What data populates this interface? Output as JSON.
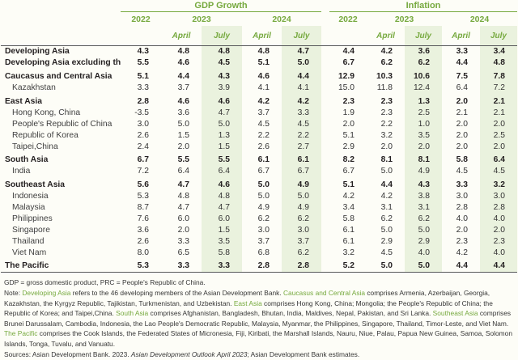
{
  "colors": {
    "accent_green": "#76a93e",
    "july_column_shade": "#eaf2de",
    "rule_dark": "#58595b",
    "text_dark": "#231f20"
  },
  "table": {
    "groups": [
      {
        "label": "GDP Growth",
        "years": [
          {
            "label": "2022"
          },
          {
            "label": "2023"
          },
          {
            "label": "2024"
          }
        ],
        "months": [
          "April",
          "July",
          "April",
          "July"
        ]
      },
      {
        "label": "Inflation",
        "years": [
          {
            "label": "2022"
          },
          {
            "label": "2023"
          },
          {
            "label": "2024"
          }
        ],
        "months": [
          "April",
          "July",
          "April",
          "July"
        ]
      }
    ],
    "rows": [
      {
        "label": "Developing Asia",
        "type": "section",
        "gap_before": false,
        "gdp": [
          "4.3",
          "4.8",
          "4.8",
          "4.8",
          "4.7"
        ],
        "inflation": [
          "4.4",
          "4.2",
          "3.6",
          "3.3",
          "3.4"
        ]
      },
      {
        "label": "Developing Asia excluding the PRC",
        "type": "section",
        "gap_before": false,
        "gdp": [
          "5.5",
          "4.6",
          "4.5",
          "5.1",
          "5.0"
        ],
        "inflation": [
          "6.7",
          "6.2",
          "6.2",
          "4.4",
          "4.8"
        ]
      },
      {
        "label": "Caucasus and Central Asia",
        "type": "section",
        "gap_before": true,
        "gdp": [
          "5.1",
          "4.4",
          "4.3",
          "4.6",
          "4.4"
        ],
        "inflation": [
          "12.9",
          "10.3",
          "10.6",
          "7.5",
          "7.8"
        ]
      },
      {
        "label": "Kazakhstan",
        "type": "sub",
        "gap_before": false,
        "gdp": [
          "3.3",
          "3.7",
          "3.9",
          "4.1",
          "4.1"
        ],
        "inflation": [
          "15.0",
          "11.8",
          "12.4",
          "6.4",
          "7.2"
        ]
      },
      {
        "label": "East Asia",
        "type": "section",
        "gap_before": true,
        "gdp": [
          "2.8",
          "4.6",
          "4.6",
          "4.2",
          "4.2"
        ],
        "inflation": [
          "2.3",
          "2.3",
          "1.3",
          "2.0",
          "2.1"
        ]
      },
      {
        "label": "Hong Kong, China",
        "type": "sub",
        "gap_before": false,
        "gdp": [
          "-3.5",
          "3.6",
          "4.7",
          "3.7",
          "3.3"
        ],
        "inflation": [
          "1.9",
          "2.3",
          "2.5",
          "2.1",
          "2.1"
        ]
      },
      {
        "label": "People's Republic of China",
        "type": "sub",
        "gap_before": false,
        "gdp": [
          "3.0",
          "5.0",
          "5.0",
          "4.5",
          "4.5"
        ],
        "inflation": [
          "2.0",
          "2.2",
          "1.0",
          "2.0",
          "2.0"
        ]
      },
      {
        "label": "Republic of Korea",
        "type": "sub",
        "gap_before": false,
        "gdp": [
          "2.6",
          "1.5",
          "1.3",
          "2.2",
          "2.2"
        ],
        "inflation": [
          "5.1",
          "3.2",
          "3.5",
          "2.0",
          "2.5"
        ]
      },
      {
        "label": "Taipei,China",
        "type": "sub",
        "gap_before": false,
        "gdp": [
          "2.4",
          "2.0",
          "1.5",
          "2.6",
          "2.7"
        ],
        "inflation": [
          "2.9",
          "2.0",
          "2.0",
          "2.0",
          "2.0"
        ]
      },
      {
        "label": "South Asia",
        "type": "section",
        "gap_before": true,
        "gdp": [
          "6.7",
          "5.5",
          "5.5",
          "6.1",
          "6.1"
        ],
        "inflation": [
          "8.2",
          "8.1",
          "8.1",
          "5.8",
          "6.4"
        ]
      },
      {
        "label": "India",
        "type": "sub",
        "gap_before": false,
        "gdp": [
          "7.2",
          "6.4",
          "6.4",
          "6.7",
          "6.7"
        ],
        "inflation": [
          "6.7",
          "5.0",
          "4.9",
          "4.5",
          "4.5"
        ]
      },
      {
        "label": "Southeast Asia",
        "type": "section",
        "gap_before": true,
        "gdp": [
          "5.6",
          "4.7",
          "4.6",
          "5.0",
          "4.9"
        ],
        "inflation": [
          "5.1",
          "4.4",
          "4.3",
          "3.3",
          "3.2"
        ]
      },
      {
        "label": "Indonesia",
        "type": "sub",
        "gap_before": false,
        "gdp": [
          "5.3",
          "4.8",
          "4.8",
          "5.0",
          "5.0"
        ],
        "inflation": [
          "4.2",
          "4.2",
          "3.8",
          "3.0",
          "3.0"
        ]
      },
      {
        "label": "Malaysia",
        "type": "sub",
        "gap_before": false,
        "gdp": [
          "8.7",
          "4.7",
          "4.7",
          "4.9",
          "4.9"
        ],
        "inflation": [
          "3.4",
          "3.1",
          "3.1",
          "2.8",
          "2.8"
        ]
      },
      {
        "label": "Philippines",
        "type": "sub",
        "gap_before": false,
        "gdp": [
          "7.6",
          "6.0",
          "6.0",
          "6.2",
          "6.2"
        ],
        "inflation": [
          "5.8",
          "6.2",
          "6.2",
          "4.0",
          "4.0"
        ]
      },
      {
        "label": "Singapore",
        "type": "sub",
        "gap_before": false,
        "gdp": [
          "3.6",
          "2.0",
          "1.5",
          "3.0",
          "3.0"
        ],
        "inflation": [
          "6.1",
          "5.0",
          "5.0",
          "2.0",
          "2.0"
        ]
      },
      {
        "label": "Thailand",
        "type": "sub",
        "gap_before": false,
        "gdp": [
          "2.6",
          "3.3",
          "3.5",
          "3.7",
          "3.7"
        ],
        "inflation": [
          "6.1",
          "2.9",
          "2.9",
          "2.3",
          "2.3"
        ]
      },
      {
        "label": "Viet Nam",
        "type": "sub",
        "gap_before": false,
        "gdp": [
          "8.0",
          "6.5",
          "5.8",
          "6.8",
          "6.2"
        ],
        "inflation": [
          "3.2",
          "4.5",
          "4.0",
          "4.2",
          "4.0"
        ]
      },
      {
        "label": "The Pacific",
        "type": "section",
        "gap_before": true,
        "gdp": [
          "5.3",
          "3.3",
          "3.3",
          "2.8",
          "2.8"
        ],
        "inflation": [
          "5.2",
          "5.0",
          "5.0",
          "4.4",
          "4.4"
        ]
      }
    ]
  },
  "footnotes": {
    "abbrev": "GDP = gross domestic product, PRC = People's Republic of China.",
    "note_segments": [
      {
        "text": "Note: ",
        "green": false
      },
      {
        "text": "Developing Asia",
        "green": true
      },
      {
        "text": " refers to the 46 developing members of the Asian Development Bank. ",
        "green": false
      },
      {
        "text": "Caucasus and Central Asia",
        "green": true
      },
      {
        "text": " comprises Armenia, Azerbaijan, Georgia, Kazakhstan, the Kyrgyz Republic, Tajikistan, Turkmenistan, and Uzbekistan. ",
        "green": false
      },
      {
        "text": "East Asia",
        "green": true
      },
      {
        "text": " comprises Hong Kong, China; Mongolia; the People's Republic of China; the Republic of Korea; and Taipei,China. ",
        "green": false
      },
      {
        "text": "South Asia",
        "green": true
      },
      {
        "text": " comprises Afghanistan, Bangladesh, Bhutan, India, Maldives, Nepal, Pakistan, and Sri Lanka. ",
        "green": false
      },
      {
        "text": "Southeast Asia",
        "green": true
      },
      {
        "text": " comprises Brunei Darussalam, Cambodia, Indonesia, the Lao People's Democratic Republic, Malaysia, Myanmar, the Philippines, Singapore, Thailand, Timor-Leste, and Viet Nam. ",
        "green": false
      },
      {
        "text": "The Pacific",
        "green": true
      },
      {
        "text": " comprises the Cook Islands, the Federated States of Micronesia, Fiji, Kiribati, the Marshall Islands, Nauru, Niue, Palau, Papua New Guinea, Samoa, Solomon Islands, Tonga, Tuvalu, and Vanuatu.",
        "green": false
      }
    ],
    "sources_segments": [
      {
        "text": "Sources: Asian Development Bank. 2023. ",
        "italic": false
      },
      {
        "text": "Asian Development Outlook April 2023",
        "italic": true
      },
      {
        "text": "; Asian Development Bank estimates.",
        "italic": false
      }
    ]
  }
}
